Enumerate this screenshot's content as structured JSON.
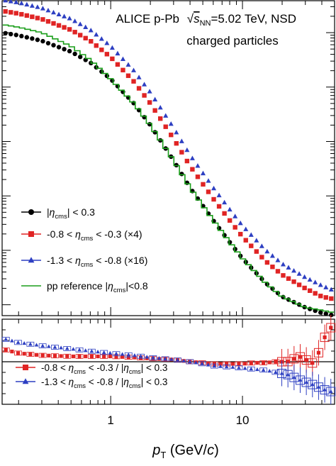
{
  "chart_data": [
    {
      "panel": "spectra",
      "type": "line",
      "log_x": true,
      "log_y": true,
      "xlim": [
        0.15,
        50
      ],
      "ylim_log10": [
        -5.2,
        0.6
      ],
      "title": {
        "system": "ALICE  p-Pb",
        "sqrt": "s",
        "sub": "NN",
        "energy": "=5.02 TeV, NSD",
        "line2": "charged particles"
      },
      "series": [
        {
          "key": "eta03",
          "color": "#000000",
          "marker": "circle",
          "legend": {
            "pre": "|",
            "eta": "η",
            "sub": "cms",
            "post": "| < 0.3"
          },
          "x": [
            0.15,
            0.2,
            0.3,
            0.5,
            0.7,
            1.0,
            1.5,
            2.0,
            3.0,
            4.0,
            6.0,
            8.0,
            10.0,
            15.0,
            20.0,
            30.0,
            40.0,
            50.0
          ],
          "log10y": [
            0.0,
            -0.05,
            -0.15,
            -0.35,
            -0.55,
            -0.85,
            -1.3,
            -1.7,
            -2.35,
            -2.85,
            -3.45,
            -3.85,
            -4.15,
            -4.6,
            -4.85,
            -5.05,
            -5.15,
            -5.2
          ]
        },
        {
          "key": "eta0803",
          "color": "#e02424",
          "marker": "square",
          "legend": {
            "pre": "-0.8 < ",
            "eta": "η",
            "sub": "cms",
            "post": " < -0.3 (×4)"
          },
          "x": [
            0.15,
            0.2,
            0.3,
            0.5,
            0.7,
            1.0,
            1.5,
            2.0,
            3.0,
            4.0,
            6.0,
            8.0,
            10.0,
            15.0,
            20.0,
            30.0,
            40.0,
            50.0
          ],
          "log10y": [
            0.4,
            0.35,
            0.25,
            0.05,
            -0.15,
            -0.45,
            -0.9,
            -1.3,
            -1.95,
            -2.45,
            -3.05,
            -3.45,
            -3.75,
            -4.2,
            -4.45,
            -4.7,
            -4.85,
            -4.9
          ]
        },
        {
          "key": "eta1308",
          "color": "#2d3fc2",
          "marker": "triangle",
          "legend": {
            "pre": "-1.3 < ",
            "eta": "η",
            "sub": "cms",
            "post": " < -0.8 (×16)"
          },
          "x": [
            0.15,
            0.2,
            0.3,
            0.5,
            0.7,
            1.0,
            1.5,
            2.0,
            3.0,
            4.0,
            6.0,
            8.0,
            10.0,
            15.0,
            20.0,
            30.0,
            40.0,
            50.0
          ],
          "log10y": [
            0.6,
            0.55,
            0.45,
            0.25,
            0.05,
            -0.25,
            -0.7,
            -1.1,
            -1.75,
            -2.25,
            -2.85,
            -3.25,
            -3.55,
            -4.0,
            -4.25,
            -4.5,
            -4.65,
            -4.75
          ]
        },
        {
          "key": "pp",
          "color": "#1a9e1a",
          "marker": "line",
          "legend": {
            "pre": "pp reference |",
            "eta": "η",
            "sub": "cms",
            "post": "|<0.8"
          },
          "x": [
            0.15,
            0.2,
            0.3,
            0.5,
            0.7,
            1.0,
            1.5,
            2.0,
            3.0,
            4.0,
            6.0,
            8.0,
            10.0,
            15.0,
            20.0,
            30.0,
            40.0,
            50.0
          ],
          "log10y": [
            0.15,
            0.1,
            0.0,
            -0.25,
            -0.5,
            -0.85,
            -1.3,
            -1.7,
            -2.35,
            -2.85,
            -3.45,
            -3.85,
            -4.15,
            -4.6,
            -4.85,
            -5.05,
            -5.1,
            -5.15
          ]
        }
      ]
    },
    {
      "panel": "ratio",
      "type": "scatter",
      "log_x": true,
      "xlim": [
        0.15,
        50
      ],
      "ylim": [
        0.6,
        1.4
      ],
      "reference_line": 1.0,
      "series": [
        {
          "key": "ratio_red",
          "color": "#e02424",
          "marker": "square",
          "legend": {
            "pre": "-0.8 < ",
            "eta": "η",
            "sub": "cms",
            "post": " < -0.3 / |",
            "eta2": "η",
            "sub2": "cms",
            "post2": "| < 0.3"
          },
          "x": [
            0.15,
            0.2,
            0.3,
            0.5,
            0.7,
            1.0,
            1.5,
            2.0,
            3.0,
            4.0,
            5.0,
            6.0,
            8.0,
            10.0,
            12.0,
            15.0,
            18.0,
            22.0,
            27.0,
            35.0,
            45.0
          ],
          "y": [
            1.12,
            1.08,
            1.06,
            1.05,
            1.05,
            1.05,
            1.04,
            1.03,
            1.02,
            1.0,
            0.99,
            0.98,
            0.98,
            0.98,
            0.99,
            0.99,
            1.0,
            1.0,
            1.05,
            0.98,
            1.32
          ]
        },
        {
          "key": "ratio_blue",
          "color": "#2d3fc2",
          "marker": "triangle",
          "legend": {
            "pre": "-1.3 < ",
            "eta": "η",
            "sub": "cms",
            "post": " < -0.8 / |",
            "eta2": "η",
            "sub2": "cms",
            "post2": "| < 0.3"
          },
          "x": [
            0.15,
            0.2,
            0.3,
            0.5,
            0.7,
            1.0,
            1.5,
            2.0,
            3.0,
            4.0,
            5.0,
            6.0,
            8.0,
            10.0,
            12.0,
            15.0,
            18.0,
            22.0,
            27.0,
            35.0,
            45.0
          ],
          "y": [
            1.22,
            1.18,
            1.15,
            1.12,
            1.1,
            1.08,
            1.06,
            1.04,
            1.02,
            1.0,
            0.98,
            0.96,
            0.95,
            0.94,
            0.93,
            0.92,
            0.9,
            0.88,
            0.83,
            0.78,
            0.72
          ]
        }
      ]
    }
  ],
  "xaxis": {
    "ticks": [
      {
        "value": 1,
        "label": "1"
      },
      {
        "value": 10,
        "label": "10"
      }
    ],
    "title": {
      "p": "p",
      "sub": "T",
      "unit_pre": " (GeV/",
      "c": "c",
      "unit_post": ")"
    }
  }
}
